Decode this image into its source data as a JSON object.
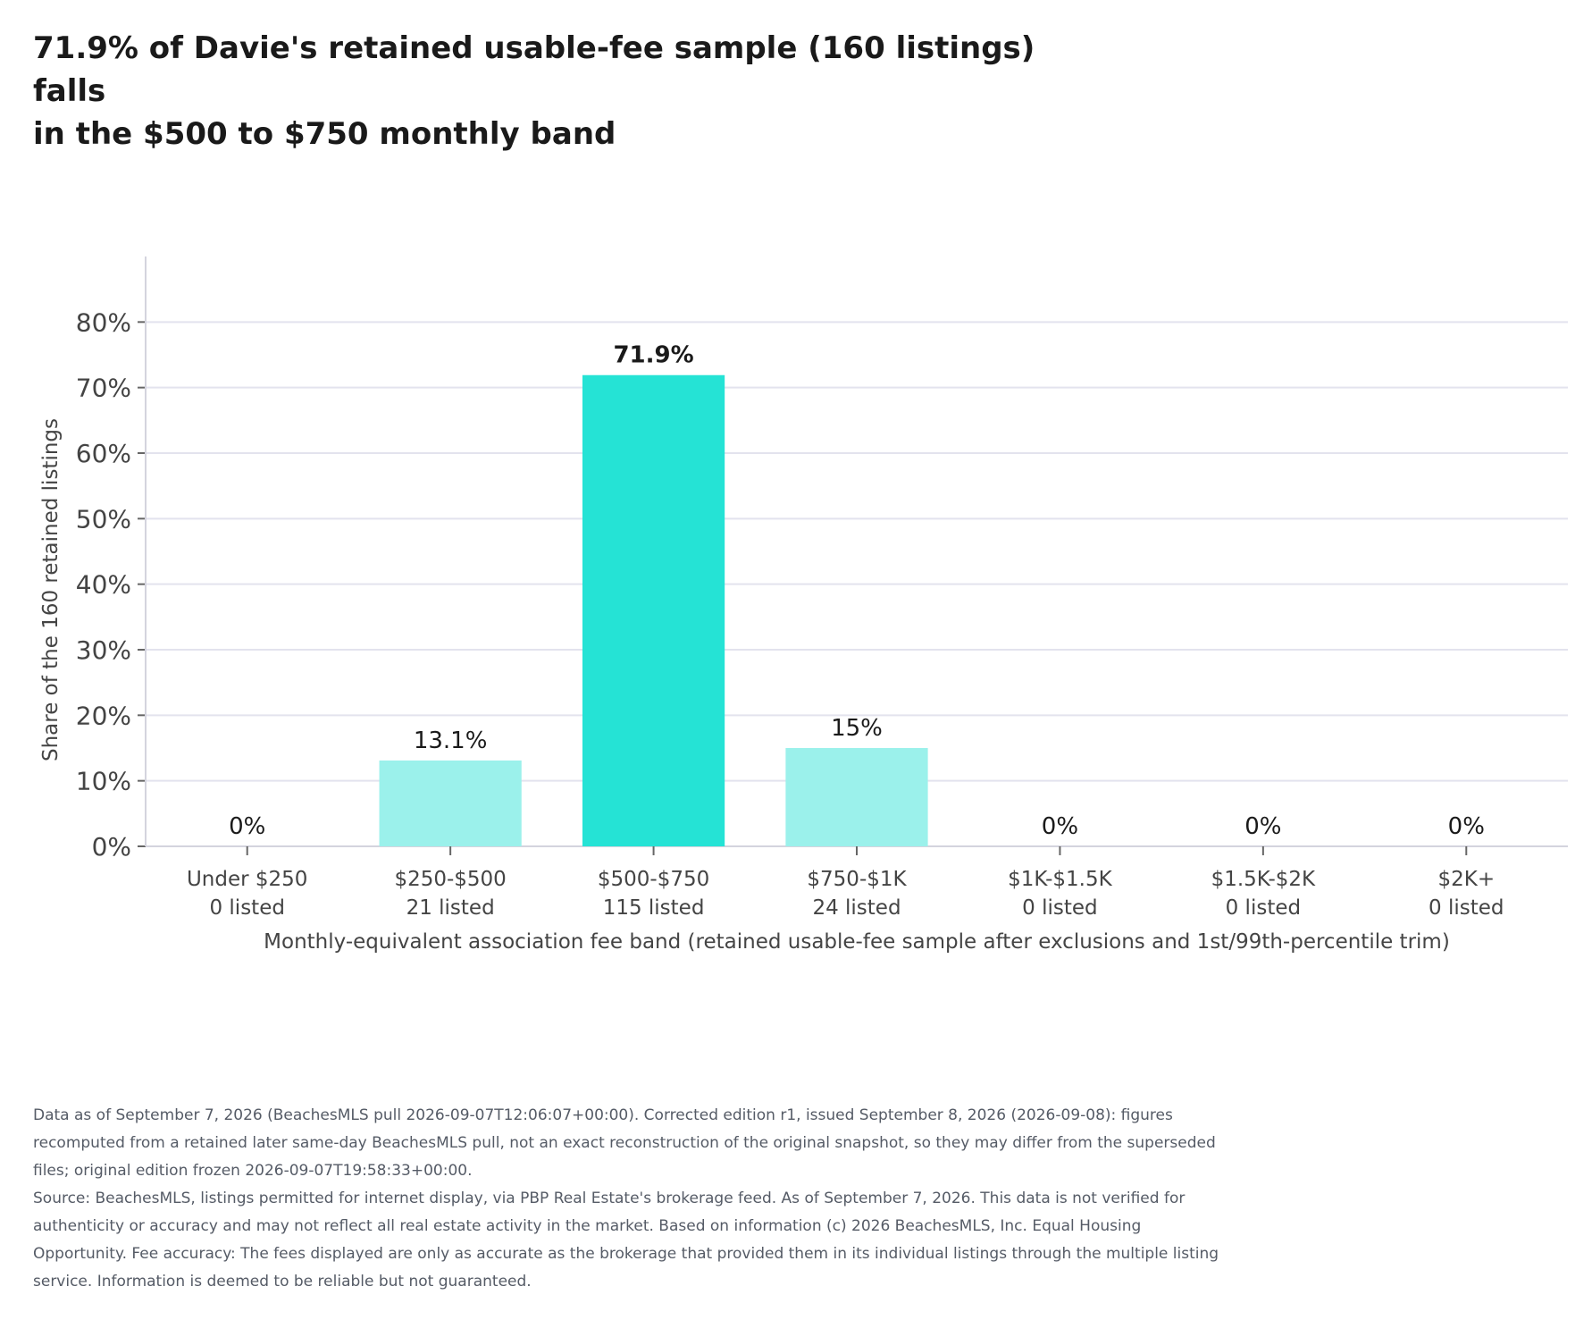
{
  "chart_data": {
    "type": "bar",
    "title_lines": [
      "71.9% of Davie's retained usable-fee sample (160 listings) falls",
      "in the $500 to $750 monthly band"
    ],
    "categories": [
      "Under $250",
      "$250-$500",
      "$500-$750",
      "$750-$1K",
      "$1K-$1.5K",
      "$1.5K-$2K",
      "$2K+"
    ],
    "counts": [
      "0 listed",
      "21 listed",
      "115 listed",
      "24 listed",
      "0 listed",
      "0 listed",
      "0 listed"
    ],
    "values": [
      0,
      13.1,
      71.9,
      15,
      0,
      0,
      0
    ],
    "data_labels": [
      "0%",
      "13.1%",
      "71.9%",
      "15%",
      "0%",
      "0%",
      "0%"
    ],
    "highlight_index": 2,
    "ylabel": "Share of the 160 retained listings",
    "xlabel": "Monthly-equivalent association fee band (retained usable-fee sample after exclusions and 1st/99th-percentile trim)",
    "ylim": [
      0,
      90
    ],
    "yticks": [
      0,
      10,
      20,
      30,
      40,
      50,
      60,
      70,
      80
    ],
    "ytick_labels": [
      "0%",
      "10%",
      "20%",
      "30%",
      "40%",
      "50%",
      "60%",
      "70%",
      "80%"
    ],
    "grid": true,
    "colors": {
      "highlight": "#25e3d5",
      "bar": "#9bf1eb",
      "grid": "#e3e3ee",
      "axis": "#d4d4de"
    }
  },
  "footer": {
    "note": "Data as of September 7, 2026 (BeachesMLS pull 2026-09-07T12:06:07+00:00). Corrected edition r1, issued September 8, 2026 (2026-09-08): figures recomputed from a retained later same-day BeachesMLS pull, not an exact reconstruction of the original snapshot, so they may differ from the superseded files; original edition frozen 2026-09-07T19:58:33+00:00.",
    "source": "Source: BeachesMLS, listings permitted for internet display, via PBP Real Estate's brokerage feed. As of September 7, 2026. This data is not verified for authenticity or accuracy and may not reflect all real estate activity in the market. Based on information (c) 2026 BeachesMLS, Inc. Equal Housing Opportunity. Fee accuracy: The fees displayed are only as accurate as the brokerage that provided them in its individual listings through the multiple listing service. Information is deemed to be reliable but not guaranteed."
  }
}
